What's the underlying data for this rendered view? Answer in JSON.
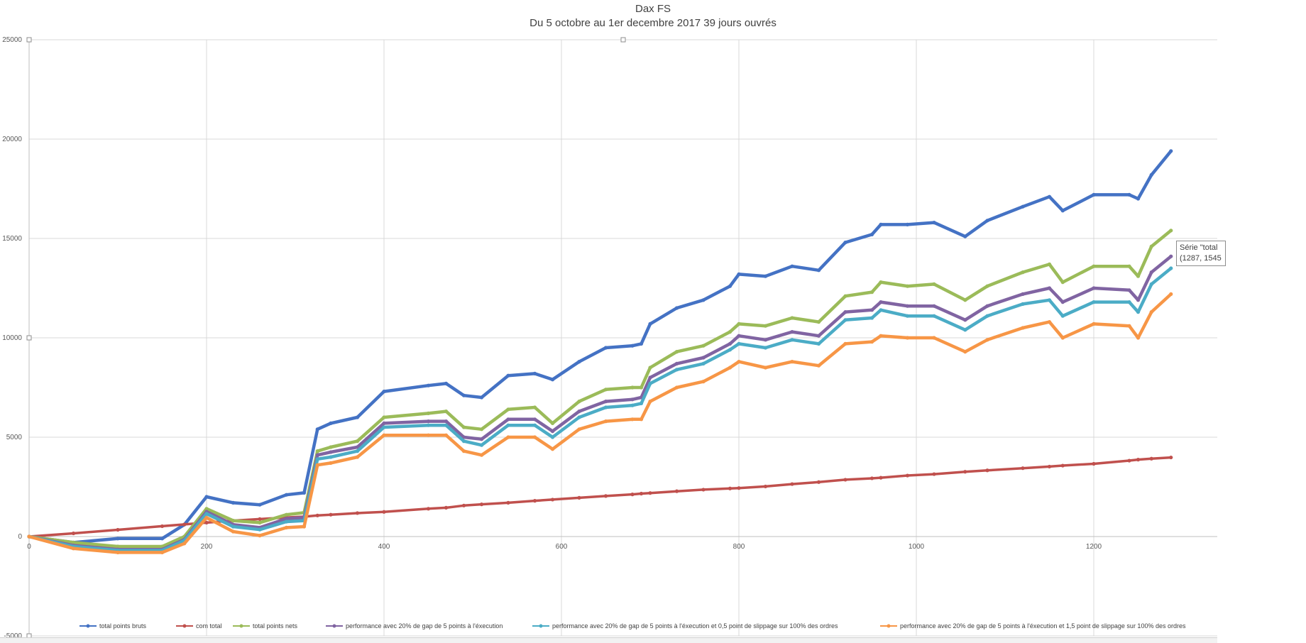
{
  "chart_data": {
    "type": "line",
    "title": "Dax FS",
    "subtitle": "Du 5 octobre au 1er decembre 2017 39 jours ouvrés",
    "xlim": [
      0,
      1340
    ],
    "ylim": [
      -5000,
      25000
    ],
    "x_ticks": [
      "0",
      "200",
      "400",
      "600",
      "800",
      "1000",
      "1200"
    ],
    "y_ticks": [
      "-5000",
      "0",
      "5000",
      "10000",
      "15000",
      "20000",
      "25000"
    ],
    "grid": true,
    "legend_position": "bottom",
    "x": [
      0,
      50,
      100,
      150,
      175,
      200,
      230,
      260,
      290,
      310,
      325,
      340,
      370,
      400,
      450,
      470,
      490,
      510,
      540,
      570,
      590,
      620,
      650,
      680,
      690,
      700,
      730,
      760,
      790,
      800,
      830,
      860,
      890,
      920,
      950,
      960,
      990,
      1020,
      1055,
      1080,
      1120,
      1150,
      1165,
      1200,
      1240,
      1250,
      1265,
      1287
    ],
    "series": [
      {
        "name": "total points bruts",
        "color": "#4472c4",
        "values": [
          0,
          -300,
          -100,
          -100,
          600,
          2000,
          1700,
          1600,
          2100,
          2200,
          5400,
          5700,
          6000,
          7300,
          7600,
          7700,
          7100,
          7000,
          8100,
          8200,
          7900,
          8800,
          9500,
          9600,
          9700,
          10700,
          11500,
          11900,
          12600,
          13200,
          13100,
          13600,
          13400,
          14800,
          15200,
          15700,
          15700,
          15800,
          15100,
          15900,
          16600,
          17100,
          16400,
          17200,
          17200,
          17000,
          18200,
          19400
        ]
      },
      {
        "name": "com total",
        "color": "#c0504d",
        "values": [
          0,
          160,
          340,
          520,
          610,
          700,
          800,
          880,
          960,
          1000,
          1060,
          1100,
          1180,
          1240,
          1400,
          1450,
          1560,
          1620,
          1700,
          1800,
          1860,
          1950,
          2040,
          2120,
          2160,
          2190,
          2280,
          2360,
          2420,
          2440,
          2520,
          2640,
          2740,
          2860,
          2930,
          2960,
          3070,
          3140,
          3260,
          3330,
          3440,
          3520,
          3570,
          3660,
          3820,
          3870,
          3920,
          3980
        ]
      },
      {
        "name": "total points nets",
        "color": "#9bbb59",
        "values": [
          0,
          -300,
          -500,
          -500,
          0,
          1400,
          800,
          700,
          1100,
          1200,
          4300,
          4500,
          4800,
          6000,
          6200,
          6300,
          5500,
          5400,
          6400,
          6500,
          5700,
          6800,
          7400,
          7500,
          7500,
          8500,
          9300,
          9600,
          10300,
          10700,
          10600,
          11000,
          10800,
          12100,
          12300,
          12800,
          12600,
          12700,
          11900,
          12600,
          13300,
          13700,
          12800,
          13600,
          13600,
          13100,
          14600,
          15400
        ]
      },
      {
        "name": "performance avec 20% de gap de 5 points à l'éxecution",
        "color": "#8064a2",
        "values": [
          0,
          -450,
          -650,
          -650,
          -150,
          1250,
          600,
          450,
          900,
          950,
          4100,
          4250,
          4500,
          5700,
          5800,
          5800,
          5000,
          4900,
          5900,
          5900,
          5300,
          6300,
          6800,
          6900,
          7000,
          8000,
          8700,
          9000,
          9700,
          10100,
          9900,
          10300,
          10100,
          11300,
          11400,
          11800,
          11600,
          11600,
          10900,
          11600,
          12200,
          12500,
          11800,
          12500,
          12400,
          11900,
          13300,
          14100
        ]
      },
      {
        "name": "performance avec 20% de gap de 5 points à l'éxecution et 0,5 point de slippage sur 100% des ordres",
        "color": "#4bacc6",
        "values": [
          0,
          -500,
          -700,
          -700,
          -200,
          1150,
          500,
          350,
          750,
          800,
          3900,
          4000,
          4300,
          5500,
          5600,
          5600,
          4800,
          4600,
          5600,
          5600,
          5000,
          6000,
          6500,
          6600,
          6700,
          7700,
          8400,
          8700,
          9400,
          9700,
          9500,
          9900,
          9700,
          10900,
          11000,
          11400,
          11100,
          11100,
          10400,
          11100,
          11700,
          11900,
          11100,
          11800,
          11800,
          11300,
          12700,
          13500
        ]
      },
      {
        "name": "performance avec 20% de gap de 5 points à l'éxecution et 1,5 point de slippage sur 100% des ordres",
        "color": "#f79646",
        "values": [
          0,
          -600,
          -800,
          -800,
          -350,
          950,
          250,
          50,
          450,
          500,
          3600,
          3700,
          4000,
          5100,
          5100,
          5100,
          4300,
          4100,
          5000,
          5000,
          4400,
          5400,
          5800,
          5900,
          5900,
          6800,
          7500,
          7800,
          8500,
          8800,
          8500,
          8800,
          8600,
          9700,
          9800,
          10100,
          10000,
          10000,
          9300,
          9900,
          10500,
          10800,
          10000,
          10700,
          10600,
          10000,
          11300,
          12200
        ]
      }
    ]
  },
  "tooltip": {
    "line1": "Série \"total",
    "line2": "(1287, 1545"
  }
}
